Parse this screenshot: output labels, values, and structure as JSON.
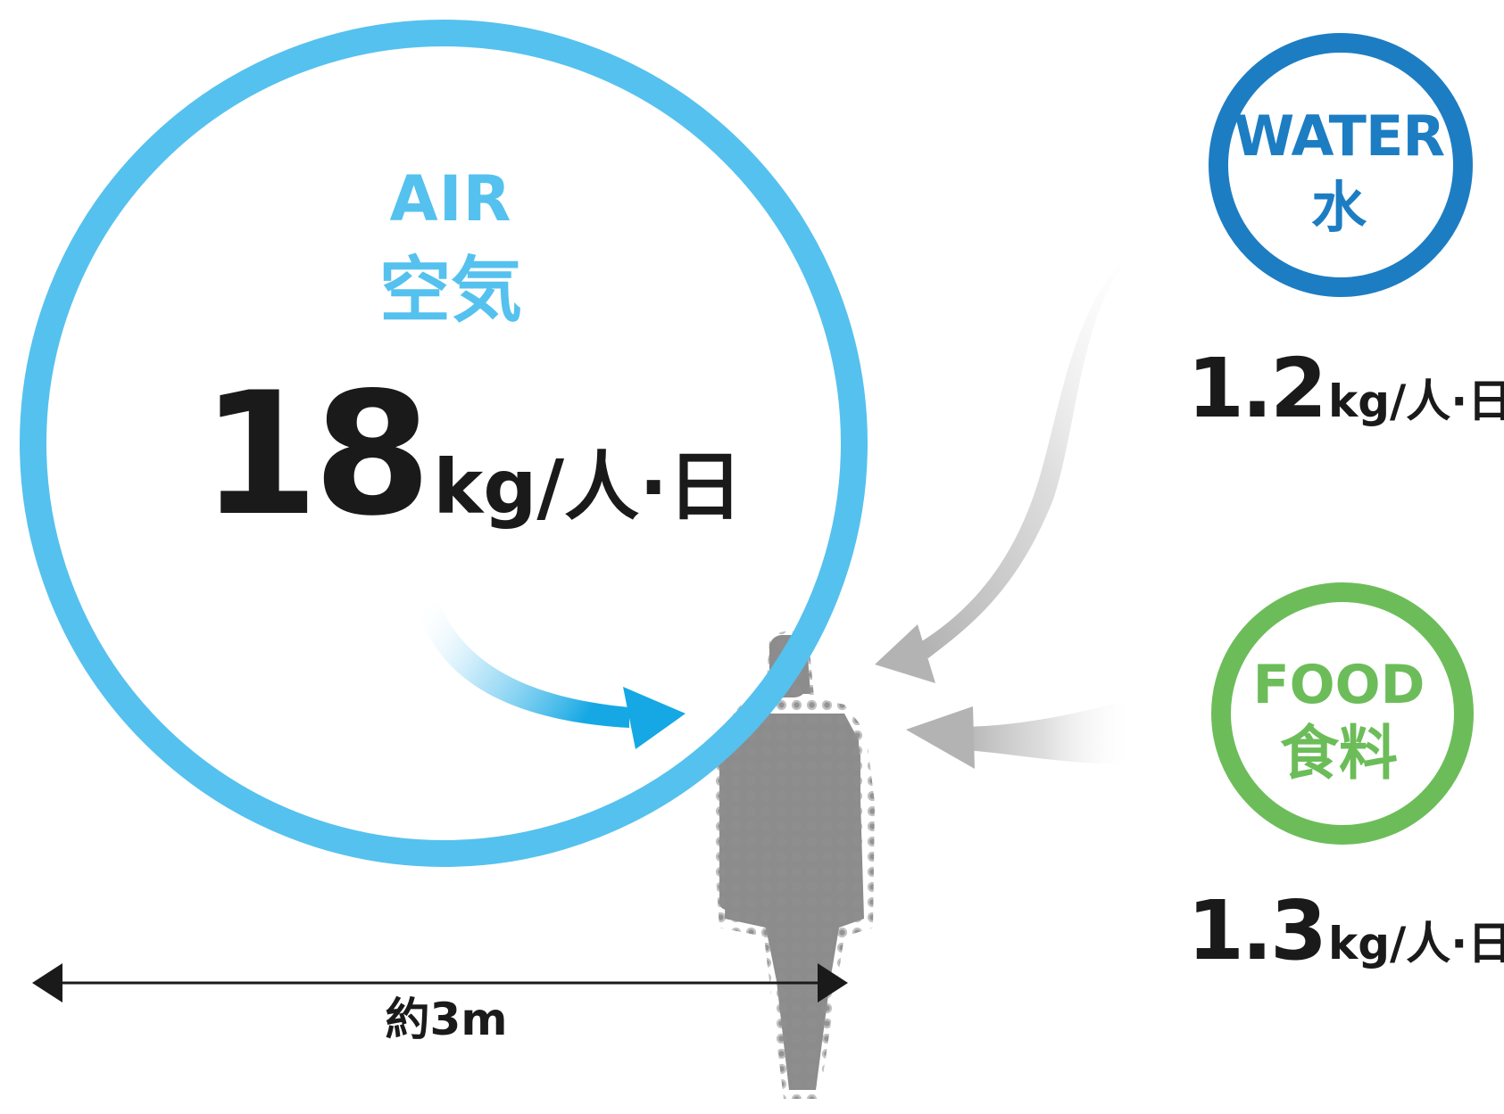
{
  "colors": {
    "air": "#55c1ee",
    "water": "#1d7dc3",
    "food": "#6cbd59",
    "text_dark": "#1a1a1a",
    "inflow_arrow_gray": "#b5b5b5",
    "person": "#8c8c8c",
    "air_arrow": "#16a8e4"
  },
  "air": {
    "label_en": "AIR",
    "label_ja": "空気",
    "amount": "18",
    "unit": "kg/人·日"
  },
  "water": {
    "label_en": "WATER",
    "label_ja": "水",
    "amount": "1.2",
    "unit": "kg/人·日"
  },
  "food": {
    "label_en": "FOOD",
    "label_ja": "食料",
    "amount": "1.3",
    "unit": "kg/人·日"
  },
  "distance": {
    "label": "約3m"
  },
  "icons": {
    "person": "person-silhouette-icon",
    "air_arrow": "air-inflow-arrow-icon",
    "water_arrow": "water-inflow-arrow-icon",
    "food_arrow": "food-inflow-arrow-icon",
    "distance_arrow": "double-headed-arrow-icon"
  }
}
